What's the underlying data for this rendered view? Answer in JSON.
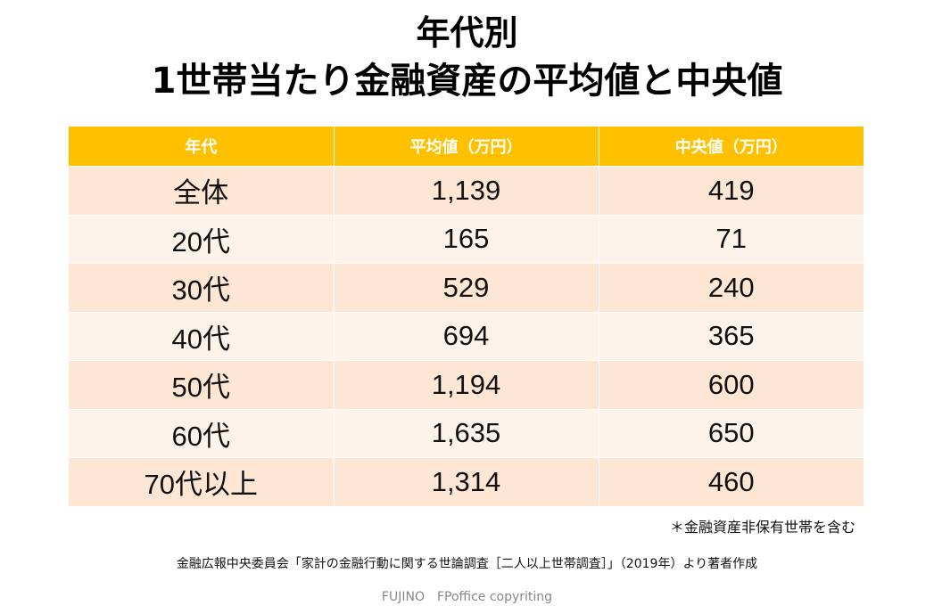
{
  "title": {
    "line1": "年代別",
    "line2": "1世帯当たり金融資産の平均値と中央値"
  },
  "table": {
    "headers": [
      "年代",
      "平均値（万円）",
      "中央値（万円）"
    ],
    "rows": [
      [
        "全体",
        "1,139",
        "419"
      ],
      [
        "20代",
        "165",
        "71"
      ],
      [
        "30代",
        "529",
        "240"
      ],
      [
        "40代",
        "694",
        "365"
      ],
      [
        "50代",
        "1,194",
        "600"
      ],
      [
        "60代",
        "1,635",
        "650"
      ],
      [
        "70代以上",
        "1,314",
        "460"
      ]
    ]
  },
  "note": "＊金融資産非保有世帯を含む",
  "source": "金融広報中央委員会「家計の金融行動に関する世論調査［二人以上世帯調査］」（2019年）より著者作成",
  "copyright": "FUJINO　FPoffice copyriting",
  "colors": {
    "header": "#FFC000",
    "row_odd": "#FDE6D4",
    "row_even": "#FEF3EA"
  }
}
